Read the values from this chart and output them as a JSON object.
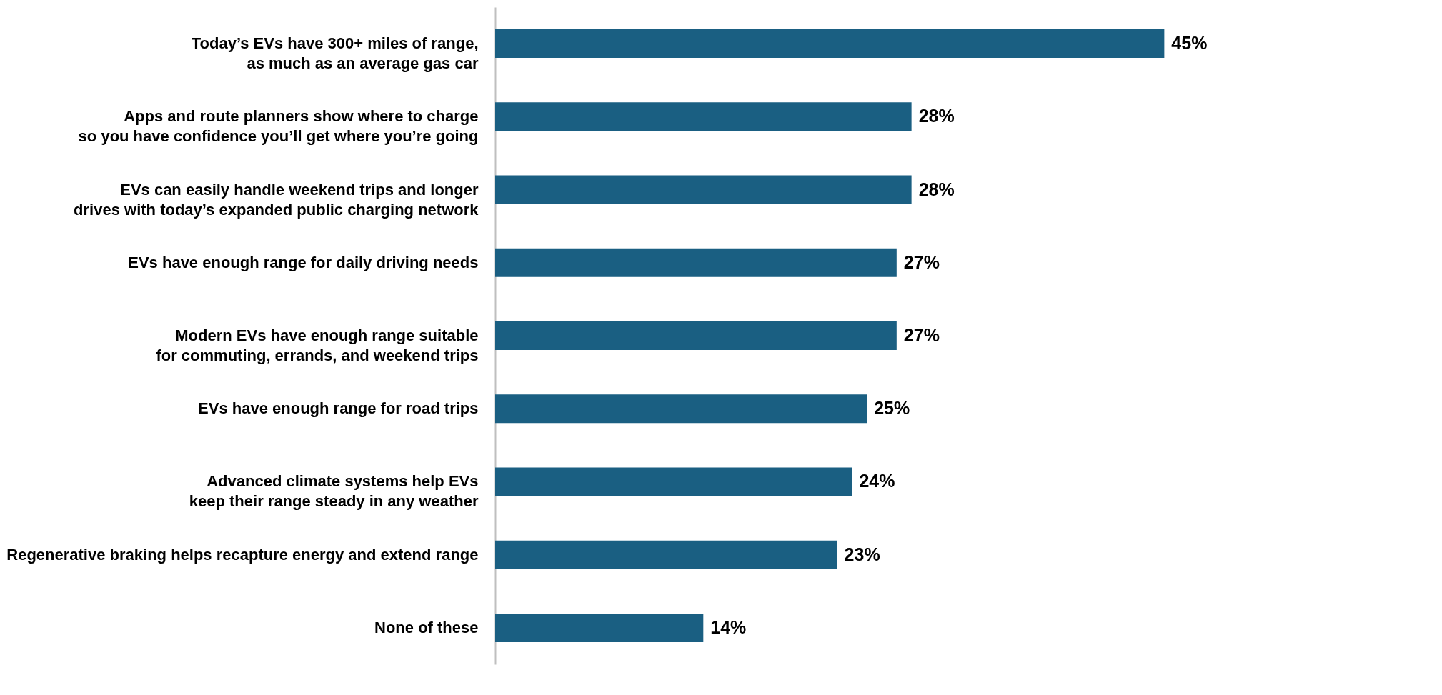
{
  "chart_data": {
    "type": "bar",
    "orientation": "horizontal",
    "categories": [
      "Today’s EVs have 300+ miles of range,\nas much as an average gas car",
      "Apps and route planners show where to charge\nso you have confidence you’ll get where you’re going",
      "EVs can easily handle weekend trips and longer\ndrives with today’s expanded public charging network",
      "EVs have enough range for daily driving needs",
      "Modern EVs have enough range suitable\nfor commuting, errands, and weekend trips",
      "EVs have enough range for road trips",
      "Advanced climate systems help EVs\nkeep their range steady in any weather",
      "Regenerative braking helps recapture energy and extend range",
      "None of these"
    ],
    "values": [
      45,
      28,
      28,
      27,
      27,
      25,
      24,
      23,
      14
    ],
    "value_labels": [
      "45%",
      "28%",
      "28%",
      "27%",
      "27%",
      "25%",
      "24%",
      "23%",
      "14%"
    ],
    "color": "#1a5f82"
  }
}
